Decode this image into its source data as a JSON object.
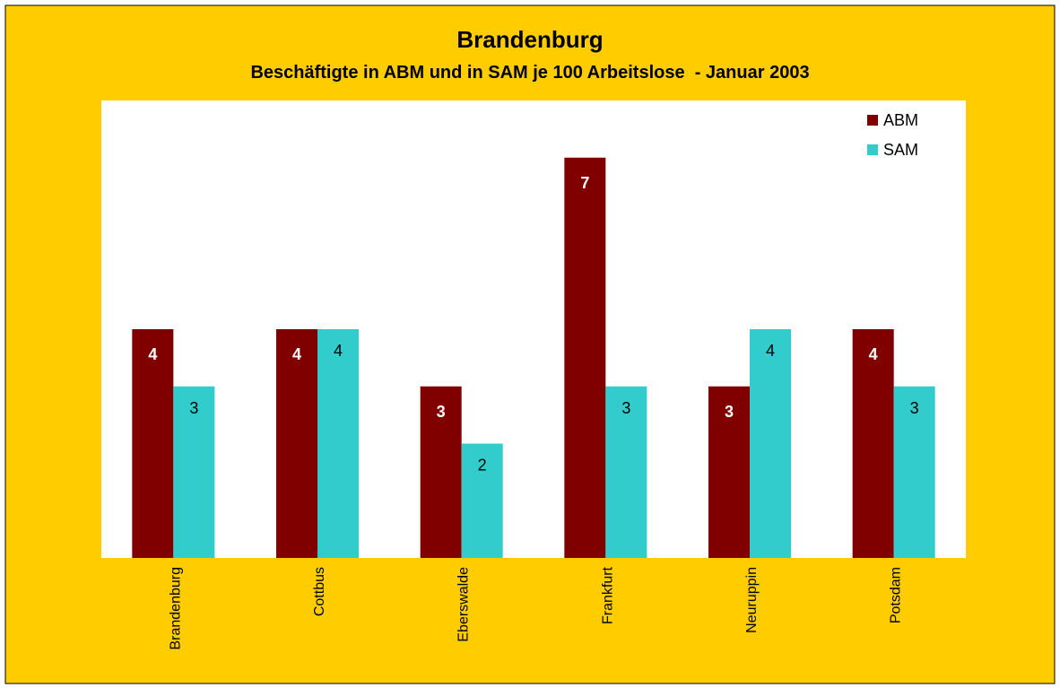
{
  "chart_data": {
    "type": "bar",
    "title": "Brandenburg",
    "subtitle": "Beschäftigte in ABM und in SAM je 100 Arbeitslose  - Januar 2003",
    "categories": [
      "Brandenburg",
      "Cottbus",
      "Eberswalde",
      "Frankfurt",
      "Neuruppin",
      "Potsdam"
    ],
    "series": [
      {
        "name": "ABM",
        "color": "#800000",
        "values": [
          4,
          4,
          3,
          7,
          3,
          4
        ]
      },
      {
        "name": "SAM",
        "color": "#33CCCC",
        "values": [
          3,
          4,
          2,
          3,
          4,
          3
        ]
      }
    ],
    "ylim": [
      0,
      8
    ],
    "legend": "top-right"
  }
}
